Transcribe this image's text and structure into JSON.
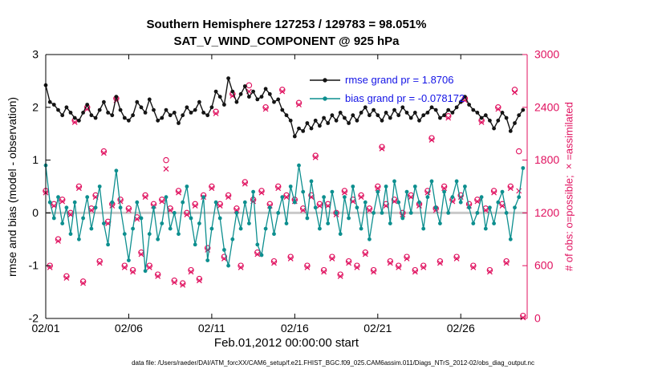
{
  "title": {
    "line1": "Southern Hemisphere 127253 / 129783 = 98.051%",
    "line2": "SAT_V_WIND_COMPONENT @ 925 hPa"
  },
  "axes": {
    "xlabel": "Feb.01,2012 00:00:00 start",
    "ylabel_left": "rmse and bias (model - observation)",
    "ylabel_right": "# of obs: o=possible; ×=assimilated",
    "xticks": {
      "values": [
        1,
        6,
        11,
        16,
        21,
        26
      ],
      "labels": [
        "02/01",
        "02/06",
        "02/11",
        "02/16",
        "02/21",
        "02/26"
      ]
    },
    "yticks_left": {
      "values": [
        3,
        2,
        1,
        0,
        -1,
        -2
      ],
      "labels": [
        "3",
        "2",
        "1",
        "0",
        "-1",
        "-2"
      ]
    },
    "yticks_right": {
      "values": [
        3000,
        2400,
        1800,
        1200,
        600,
        0
      ],
      "labels": [
        "3000",
        "2400",
        "1800",
        "1200",
        "600",
        "0"
      ]
    }
  },
  "legend": {
    "text_color": "#1414e6",
    "entries": [
      {
        "label": "rmse grand pr = 1.8706",
        "color": "#141414"
      },
      {
        "label": "bias grand pr = -0.078172",
        "color": "#0d8f8f"
      }
    ]
  },
  "footer": "data file: /Users/raeder/DAI/ATM_forcXX/CAM6_setup/f.e21.FHIST_BGC.f09_025.CAM6assim.011/Diags_NTrS_2012-02/obs_diag_output.nc",
  "colors": {
    "rmse": "#141414",
    "bias": "#0d8f8f",
    "obs": "#e0115f",
    "zero_line": "#c9c9c9",
    "axis": "#000000"
  },
  "chart_data": {
    "type": "line",
    "title": "SAT_V_WIND_COMPONENT @ 925 hPa",
    "subtitle": "Southern Hemisphere 127253 / 129783 = 98.051%",
    "xlabel": "Feb.01,2012 00:00:00 start",
    "ylabel_left": "rmse and bias (model - observation)",
    "ylabel_right": "# of obs: o=possible; ×=assimilated",
    "left_ylim": [
      -2,
      3
    ],
    "right_ylim": [
      0,
      3000
    ],
    "grid": false,
    "legend_position": "top-inside",
    "x_axis": {
      "start_day": 1,
      "step_days": 0.25,
      "n_points": 116,
      "domain": [
        1,
        30
      ],
      "tick_values": [
        1,
        6,
        11,
        16,
        21,
        26
      ],
      "tick_labels": [
        "02/01",
        "02/06",
        "02/11",
        "02/16",
        "02/21",
        "02/26"
      ]
    },
    "series": [
      {
        "name": "rmse",
        "axis": "left",
        "color": "#141414",
        "marker": "filled-circle",
        "line": true,
        "grand_mean": 1.8706,
        "values": [
          2.42,
          2.1,
          2.05,
          1.95,
          1.85,
          2.0,
          1.9,
          1.8,
          1.75,
          1.9,
          2.05,
          1.85,
          1.8,
          1.95,
          2.1,
          1.9,
          1.85,
          2.2,
          1.95,
          1.8,
          1.75,
          1.85,
          2.1,
          2.0,
          1.9,
          2.15,
          1.95,
          1.75,
          1.8,
          1.95,
          1.85,
          1.9,
          1.7,
          1.85,
          2.0,
          1.9,
          1.95,
          2.1,
          1.9,
          1.85,
          2.0,
          2.3,
          2.2,
          2.05,
          2.55,
          2.3,
          2.1,
          2.25,
          2.4,
          2.2,
          2.3,
          2.15,
          2.2,
          2.35,
          2.25,
          2.1,
          2.15,
          1.95,
          1.85,
          1.75,
          1.45,
          1.6,
          1.55,
          1.7,
          1.6,
          1.75,
          1.65,
          1.8,
          1.7,
          1.85,
          1.75,
          1.9,
          1.8,
          1.7,
          1.85,
          1.75,
          1.9,
          2.0,
          1.85,
          1.95,
          1.85,
          1.75,
          1.9,
          1.8,
          1.95,
          1.85,
          2.0,
          1.9,
          1.8,
          1.9,
          1.75,
          1.85,
          1.9,
          2.0,
          1.95,
          1.8,
          1.85,
          1.95,
          1.9,
          2.0,
          2.1,
          2.2,
          2.05,
          1.95,
          1.9,
          1.8,
          1.85,
          1.75,
          1.6,
          1.75,
          1.9,
          1.8,
          1.55,
          1.7,
          1.85,
          1.95
        ]
      },
      {
        "name": "bias",
        "axis": "left",
        "color": "#0d8f8f",
        "marker": "filled-circle",
        "line": true,
        "grand_mean": -0.078172,
        "values": [
          0.9,
          0.2,
          -0.1,
          0.3,
          -0.2,
          0.1,
          -0.4,
          0.2,
          -0.5,
          -0.1,
          0.3,
          -0.3,
          0.1,
          0.5,
          -0.2,
          -0.6,
          0.2,
          0.8,
          0.1,
          -0.4,
          -0.9,
          -0.3,
          0.2,
          -0.1,
          -1.1,
          -0.4,
          0.1,
          -0.5,
          -0.2,
          0.3,
          -0.3,
          0.0,
          -0.4,
          0.2,
          0.5,
          -0.1,
          -0.6,
          -0.2,
          0.3,
          -0.9,
          -0.3,
          0.2,
          -0.1,
          -0.7,
          -1.0,
          -0.5,
          0.0,
          -0.3,
          0.2,
          -0.2,
          0.4,
          -0.6,
          -0.8,
          -0.3,
          0.1,
          -0.4,
          0.0,
          0.3,
          -0.2,
          0.5,
          0.2,
          0.9,
          0.4,
          -0.1,
          0.6,
          0.1,
          -0.3,
          0.3,
          -0.2,
          0.4,
          0.0,
          -0.4,
          0.3,
          -0.1,
          0.5,
          0.1,
          -0.3,
          0.2,
          -0.5,
          0.0,
          0.4,
          0.0,
          0.5,
          -0.2,
          0.6,
          0.2,
          -0.1,
          0.4,
          0.0,
          0.5,
          0.2,
          -0.3,
          0.3,
          0.6,
          0.1,
          -0.2,
          0.4,
          0.0,
          0.3,
          0.6,
          0.2,
          0.5,
          0.1,
          -0.2,
          0.0,
          0.3,
          -0.3,
          0.1,
          -0.2,
          0.2,
          0.4,
          0.0,
          -0.5,
          0.1,
          0.3,
          0.85
        ]
      },
      {
        "name": "possible_obs",
        "axis": "right",
        "color": "#e0115f",
        "marker": "circle",
        "line": false,
        "total": 129783,
        "values": [
          1450,
          600,
          1300,
          900,
          1350,
          480,
          1200,
          2250,
          1500,
          420,
          2400,
          1250,
          1400,
          650,
          1900,
          1100,
          1300,
          2500,
          1350,
          600,
          1250,
          550,
          1150,
          750,
          1400,
          600,
          1300,
          500,
          1350,
          1800,
          1250,
          430,
          1450,
          400,
          1200,
          550,
          1300,
          450,
          1400,
          800,
          1500,
          2350,
          1300,
          700,
          1400,
          2550,
          1250,
          600,
          1550,
          2650,
          1350,
          750,
          1450,
          2400,
          1300,
          650,
          1500,
          2600,
          1400,
          700,
          1350,
          2450,
          1250,
          600,
          1400,
          1850,
          1300,
          550,
          1300,
          700,
          1200,
          500,
          1450,
          650,
          1350,
          600,
          1400,
          750,
          1250,
          550,
          1500,
          1950,
          1300,
          650,
          1350,
          600,
          1200,
          700,
          1400,
          550,
          1300,
          600,
          1450,
          2050,
          1250,
          650,
          1500,
          2300,
          1350,
          700,
          1400,
          2500,
          1300,
          600,
          1350,
          2250,
          1250,
          550,
          1450,
          2400,
          1300,
          650,
          1500,
          2600,
          1900,
          30
        ]
      },
      {
        "name": "assimilated_obs",
        "axis": "right",
        "color": "#e0115f",
        "marker": "x",
        "line": false,
        "total": 127253,
        "values": [
          1430,
          580,
          1280,
          880,
          1330,
          460,
          1180,
          2230,
          1480,
          400,
          2380,
          1230,
          1380,
          630,
          1880,
          1080,
          1280,
          2480,
          1330,
          580,
          1230,
          530,
          1130,
          730,
          1380,
          580,
          1280,
          480,
          1330,
          1700,
          1230,
          410,
          1430,
          380,
          1180,
          530,
          1280,
          430,
          1380,
          780,
          1480,
          2330,
          1280,
          680,
          1380,
          2530,
          1230,
          580,
          1530,
          2580,
          1330,
          730,
          1430,
          2380,
          1280,
          630,
          1480,
          2580,
          1380,
          680,
          1330,
          2430,
          1230,
          580,
          1380,
          1830,
          1280,
          530,
          1280,
          680,
          1180,
          480,
          1430,
          630,
          1330,
          580,
          1380,
          730,
          1230,
          530,
          1480,
          1930,
          1280,
          630,
          1330,
          580,
          1180,
          680,
          1380,
          530,
          1280,
          580,
          1430,
          2030,
          1230,
          630,
          1480,
          2280,
          1330,
          680,
          1380,
          2480,
          1280,
          580,
          1330,
          2230,
          1230,
          530,
          1430,
          2380,
          1280,
          630,
          1480,
          2570,
          1450,
          10
        ]
      }
    ]
  }
}
